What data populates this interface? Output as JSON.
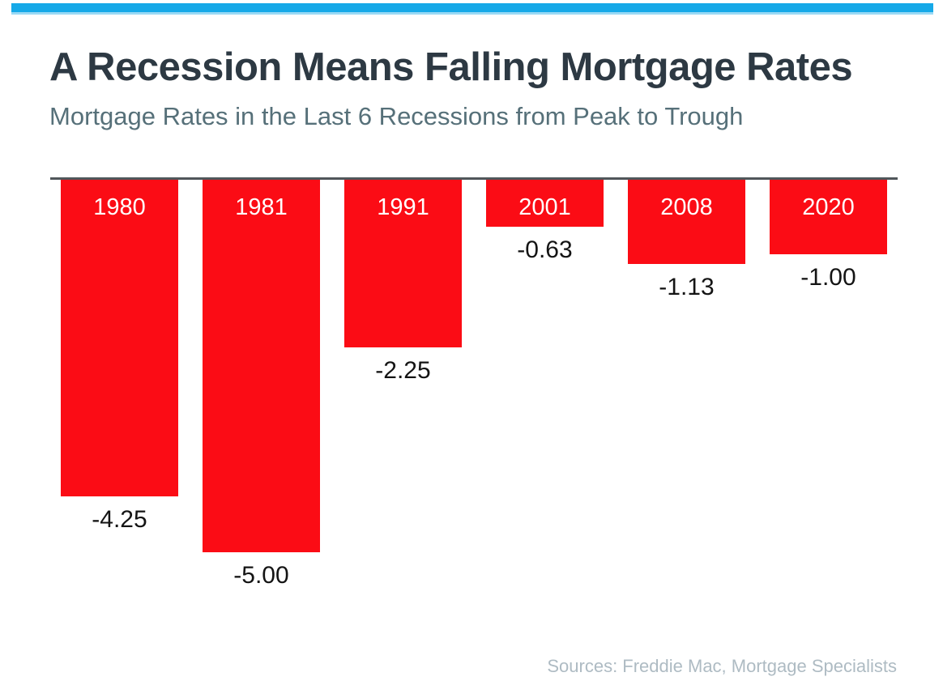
{
  "colors": {
    "accent_bar": "#16a9e8",
    "accent_bar_underline": "#9ad9f5",
    "title_text": "#2d3943",
    "subtitle_text": "#567079",
    "bar_fill": "#fb0c15",
    "bar_year_text": "#ffffff",
    "value_text": "#141414",
    "axis_line": "#50565a",
    "source_text": "#aebbc3",
    "background": "#ffffff"
  },
  "chart_data": {
    "type": "bar",
    "title": "A Recession Means Falling Mortgage Rates",
    "subtitle": "Mortgage Rates in the Last 6 Recessions from Peak to Trough",
    "categories": [
      "1980",
      "1981",
      "1991",
      "2001",
      "2008",
      "2020"
    ],
    "values": [
      -4.25,
      -5.0,
      -2.25,
      -0.63,
      -1.13,
      -1.0
    ],
    "value_labels": [
      "-4.25",
      "-5.00",
      "-2.25",
      "-0.63",
      "-1.13",
      "-1.00"
    ],
    "xlabel": "",
    "ylabel": "",
    "ylim": [
      -5.5,
      0
    ],
    "grid": false,
    "legend_position": "none",
    "orientation": "vertical-downward",
    "bar_label_placement": "inside-top",
    "value_label_placement": "below-bar",
    "bar_color": "#fb0c15"
  },
  "footer": {
    "source": "Sources: Freddie Mac, Mortgage Specialists"
  }
}
